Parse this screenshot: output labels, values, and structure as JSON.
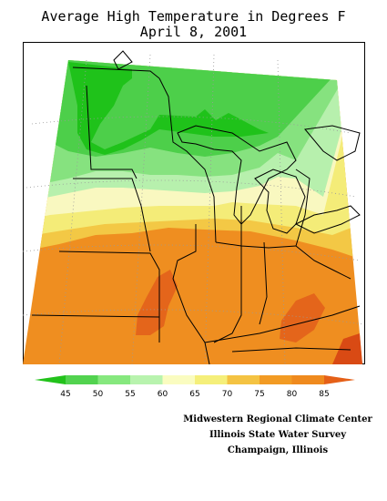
{
  "title": {
    "line1": "Average High Temperature in Degrees F",
    "line2": "April 8, 2001"
  },
  "legend": {
    "ticks": [
      "45",
      "50",
      "55",
      "60",
      "65",
      "70",
      "75",
      "80",
      "85"
    ],
    "colors": [
      "#22c21b",
      "#52d34f",
      "#86e87e",
      "#b8f3ae",
      "#fafcc0",
      "#f5ef7a",
      "#f4c343",
      "#f29b24",
      "#ef8a1e",
      "#e56018"
    ]
  },
  "map": {
    "band_colors": {
      "t40_45": "#1fc21a",
      "t45_50": "#4dcf4a",
      "t50_55": "#86e27f",
      "t55_60": "#b7f0ad",
      "t60_65": "#f9f8c0",
      "t65_70": "#f4ec78",
      "t70_75": "#f3c845",
      "t75_80": "#ef8e20",
      "t80_85": "#e4651b",
      "t85_plus": "#d94a14"
    },
    "line_color": "#000000",
    "grid_color": "#9a9a9a"
  },
  "credits": {
    "line1": "Midwestern Regional Climate Center",
    "line2": "Illinois State Water Survey",
    "line3": "Champaign, Illinois"
  }
}
